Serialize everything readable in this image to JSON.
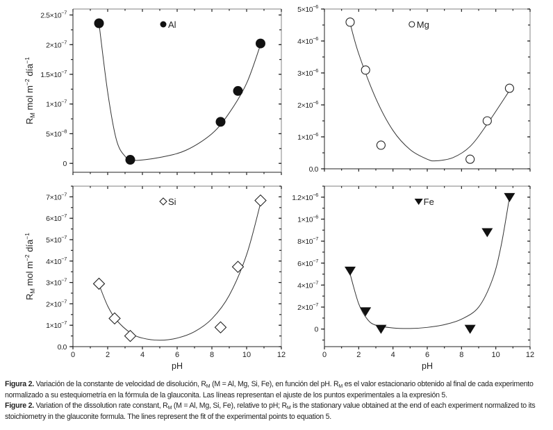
{
  "chart_data": [
    {
      "type": "scatter",
      "id": "al",
      "legend": "Al",
      "marker": "filled-circle",
      "xlabel": "",
      "ylabel": {
        "main": "R",
        "sub": "M",
        "rest1": " mol m",
        "sup1": "−2",
        "rest2": " día",
        "sup2": "−1"
      },
      "xlim": [
        0,
        12
      ],
      "ylim": [
        -1.5e-08,
        2.6e-07
      ],
      "xticks": [],
      "yticks": [
        {
          "value": 0,
          "mant": "0",
          "exp": ""
        },
        {
          "value": 5e-08,
          "mant": "5×10",
          "exp": "−8"
        },
        {
          "value": 1e-07,
          "mant": "1×10",
          "exp": "−7"
        },
        {
          "value": 1.5e-07,
          "mant": "1.5×10",
          "exp": "−7"
        },
        {
          "value": 2e-07,
          "mant": "2×10",
          "exp": "−7"
        },
        {
          "value": 2.5e-07,
          "mant": "2.5×10",
          "exp": "−7"
        }
      ],
      "points": {
        "x": [
          1.5,
          3.3,
          8.5,
          9.5,
          10.8
        ],
        "y": [
          2.36e-07,
          6e-09,
          7e-08,
          1.22e-07,
          2.02e-07
        ]
      },
      "fit": {
        "x": [
          1.5,
          2.0,
          2.5,
          3.0,
          3.5,
          5.0,
          6.5,
          8.0,
          9.0,
          10.0,
          10.8
        ],
        "y": [
          2.36e-07,
          1.2e-07,
          4e-08,
          1.2e-08,
          5e-09,
          1e-08,
          2.2e-08,
          5e-08,
          8.5e-08,
          1.35e-07,
          2e-07
        ]
      }
    },
    {
      "type": "scatter",
      "id": "mg",
      "legend": "Mg",
      "marker": "open-circle",
      "xlabel": "",
      "xlim": [
        0,
        12
      ],
      "ylim": [
        0,
        5e-06
      ],
      "xticks": [],
      "yticks": [
        {
          "value": 0,
          "mant": "0.0",
          "exp": ""
        },
        {
          "value": 1e-06,
          "mant": "1×10",
          "exp": "−6"
        },
        {
          "value": 2e-06,
          "mant": "2×10",
          "exp": "−6"
        },
        {
          "value": 3e-06,
          "mant": "3×10",
          "exp": "−6"
        },
        {
          "value": 4e-06,
          "mant": "4×10",
          "exp": "−6"
        },
        {
          "value": 5e-06,
          "mant": "5×10",
          "exp": "−6"
        }
      ],
      "points": {
        "x": [
          1.5,
          2.4,
          3.3,
          8.5,
          9.5,
          10.8
        ],
        "y": [
          4.59e-06,
          3.09e-06,
          7.4e-07,
          3e-07,
          1.5e-06,
          2.52e-06
        ]
      },
      "fit": {
        "x": [
          1.5,
          2.0,
          3.0,
          4.0,
          5.0,
          6.0,
          6.5,
          7.5,
          8.5,
          9.5,
          10.8
        ],
        "y": [
          4.55e-06,
          3.6e-06,
          2.2e-06,
          1.2e-06,
          6e-07,
          3e-07,
          2.5e-07,
          3.5e-07,
          7e-07,
          1.4e-06,
          2.45e-06
        ]
      }
    },
    {
      "type": "scatter",
      "id": "si",
      "legend": "Si",
      "marker": "open-diamond",
      "xlabel": "pH",
      "ylabel": {
        "main": "R",
        "sub": "M",
        "rest1": " mol m",
        "sup1": "−2",
        "rest2": " día",
        "sup2": "−1"
      },
      "xlim": [
        0,
        12
      ],
      "ylim": [
        0,
        7.5e-07
      ],
      "xticks": [
        "0",
        "2",
        "4",
        "6",
        "8",
        "10",
        "12"
      ],
      "yticks": [
        {
          "value": 0,
          "mant": "0.0",
          "exp": ""
        },
        {
          "value": 1e-07,
          "mant": "1×10",
          "exp": "−7"
        },
        {
          "value": 2e-07,
          "mant": "2×10",
          "exp": "−7"
        },
        {
          "value": 3e-07,
          "mant": "3×10",
          "exp": "−7"
        },
        {
          "value": 4e-07,
          "mant": "4×10",
          "exp": "−7"
        },
        {
          "value": 5e-07,
          "mant": "5×10",
          "exp": "−7"
        },
        {
          "value": 6e-07,
          "mant": "6×10",
          "exp": "−7"
        },
        {
          "value": 7e-07,
          "mant": "7×10",
          "exp": "−7"
        }
      ],
      "points": {
        "x": [
          1.5,
          2.4,
          3.3,
          8.5,
          9.5,
          10.8
        ],
        "y": [
          2.94e-07,
          1.32e-07,
          5e-08,
          9e-08,
          3.73e-07,
          6.83e-07
        ]
      },
      "fit": {
        "x": [
          1.5,
          2.0,
          2.5,
          3.3,
          4.0,
          5.0,
          6.0,
          7.0,
          8.0,
          9.0,
          10.0,
          10.8
        ],
        "y": [
          2.9e-07,
          1.9e-07,
          1.25e-07,
          6.5e-08,
          4e-08,
          3e-08,
          4e-08,
          7e-08,
          1.3e-07,
          2.4e-07,
          4.3e-07,
          6.7e-07
        ]
      }
    },
    {
      "type": "scatter",
      "id": "fe",
      "legend": "Fe",
      "marker": "filled-triangle-down",
      "xlabel": "pH",
      "xlim": [
        0,
        12
      ],
      "ylim": [
        -1.6e-07,
        1.3e-06
      ],
      "xticks": [
        "0",
        "2",
        "4",
        "6",
        "8",
        "10",
        "12"
      ],
      "yticks": [
        {
          "value": 0,
          "mant": "0",
          "exp": ""
        },
        {
          "value": 2e-07,
          "mant": "2×10",
          "exp": "−7"
        },
        {
          "value": 4e-07,
          "mant": "4×10",
          "exp": "−7"
        },
        {
          "value": 6e-07,
          "mant": "6×10",
          "exp": "−7"
        },
        {
          "value": 8e-07,
          "mant": "8×10",
          "exp": "−7"
        },
        {
          "value": 1e-06,
          "mant": "1×10",
          "exp": "−6"
        },
        {
          "value": 1.2e-06,
          "mant": "1.2×10",
          "exp": "−6"
        }
      ],
      "points": {
        "x": [
          1.5,
          2.4,
          3.3,
          8.5,
          9.5,
          10.8
        ],
        "y": [
          5.3e-07,
          1.6e-07,
          0,
          0,
          8.8e-07,
          1.2e-06
        ]
      },
      "fit": {
        "x": [
          1.5,
          2.0,
          2.5,
          3.0,
          4.0,
          5.0,
          6.0,
          7.0,
          8.0,
          9.0,
          9.8,
          10.3,
          10.8
        ],
        "y": [
          5e-07,
          2.3e-07,
          9e-08,
          3.5e-08,
          1e-08,
          5e-09,
          1.5e-08,
          4e-08,
          9e-08,
          2e-07,
          4.5e-07,
          7.5e-07,
          1.2e-06
        ]
      }
    }
  ],
  "caption": {
    "es": {
      "label": "Figura 2.",
      "t1": " Variación de la constante de velocidad de disolución, R",
      "s1": "M",
      "t2": " (M = Al, Mg, Si, Fe), en función del pH. R",
      "s2": "M",
      "t3": " es el valor estacionario obtenido al final de cada experimento normalizado a su estequiometría en la fórmula de la glauconita. Las líneas representan el ajuste de los puntos experimentales a la expresión 5."
    },
    "en": {
      "label": "Figure 2.",
      "t1": " Variation of the dissolution rate constant, R",
      "s1": "M",
      "t2": " (M = Al, Mg, Si, Fe), relative to pH; R",
      "s2": "M",
      "t3": " is the stationary value obtained at the end of each experiment normalized to its stoichiometry in the glauconite formula. The lines represent the fit of the experimental points to equation 5."
    }
  }
}
